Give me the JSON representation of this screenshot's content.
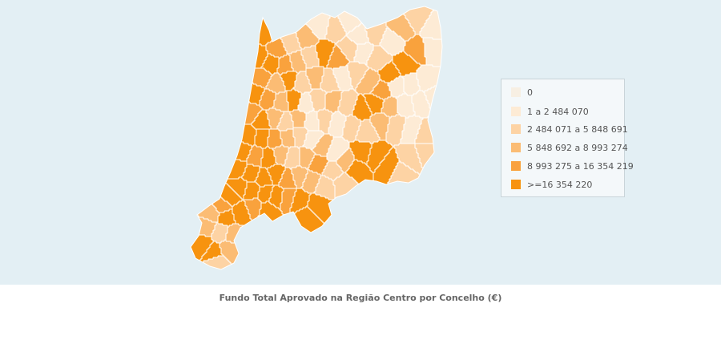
{
  "caption": "Fundo Total Aprovado na Região Centro por Concelho (€)",
  "legend": {
    "items": [
      {
        "label": "0",
        "color": "#f7efe3"
      },
      {
        "label": "1 a 2 484 070",
        "color": "#fdebd5"
      },
      {
        "label": "2 484 071 a 5 848 691",
        "color": "#fdd3a4"
      },
      {
        "label": "5 848 692 a 8 993 274",
        "color": "#fbbc74"
      },
      {
        "label": "8 993 275 a 16 354 219",
        "color": "#f9a23d"
      },
      {
        "label": ">=16 354 220",
        "color": "#f7930f"
      }
    ]
  },
  "colors": {
    "sea": "#e3eff4",
    "border": "#ffffff"
  }
}
